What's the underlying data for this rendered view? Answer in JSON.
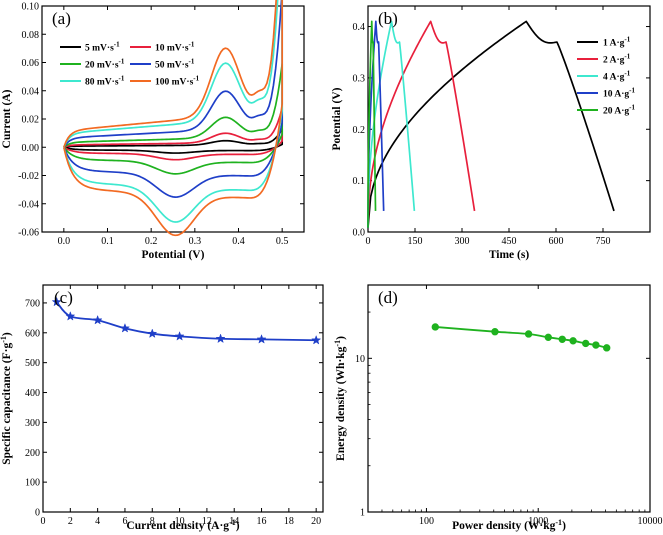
{
  "chart_data": [
    {
      "panel": "(a)",
      "type": "line",
      "xlabel": "Potential (V)",
      "ylabel": "Current (A)",
      "xlim": [
        -0.05,
        0.55
      ],
      "ylim": [
        -0.06,
        0.1
      ],
      "xticks": [
        "0.0",
        "0.1",
        "0.2",
        "0.3",
        "0.4",
        "0.5"
      ],
      "xtick_values": [
        0.0,
        0.1,
        0.2,
        0.3,
        0.4,
        0.5
      ],
      "yticks": [
        "-0.06",
        "-0.04",
        "-0.02",
        "0.00",
        "0.02",
        "0.04",
        "0.06",
        "0.08",
        "0.10"
      ],
      "ytick_values": [
        -0.06,
        -0.04,
        -0.02,
        0.0,
        0.02,
        0.04,
        0.06,
        0.08,
        0.1
      ],
      "legend_position": "top-left",
      "series": [
        {
          "name": "5 mV·s",
          "sup": "-1",
          "color": "#000000",
          "scale": 0.0035
        },
        {
          "name": "10 mV·s",
          "sup": "-1",
          "color": "#e8203c",
          "scale": 0.0075
        },
        {
          "name": "20 mV·s",
          "sup": "-1",
          "color": "#1fb21f",
          "scale": 0.016
        },
        {
          "name": "50 mV·s",
          "sup": "-1",
          "color": "#1f3fc8",
          "scale": 0.03
        },
        {
          "name": "80 mV·s",
          "sup": "-1",
          "color": "#3ee8cf",
          "scale": 0.045
        },
        {
          "name": "100 mV·s",
          "sup": "-1",
          "color": "#f26a22",
          "scale": 0.053
        }
      ]
    },
    {
      "panel": "(b)",
      "type": "line",
      "xlabel": "Time (s)",
      "ylabel": "Potential (V)",
      "xlim": [
        0,
        900
      ],
      "ylim": [
        0,
        0.44
      ],
      "xticks": [
        "0",
        "150",
        "300",
        "450",
        "600",
        "750"
      ],
      "xtick_values": [
        0,
        150,
        300,
        450,
        600,
        750
      ],
      "yticks": [
        "0.0",
        "0.1",
        "0.2",
        "0.3",
        "0.4"
      ],
      "ytick_values": [
        0.0,
        0.1,
        0.2,
        0.3,
        0.4
      ],
      "legend_position": "top-right",
      "series": [
        {
          "name": "1 A·g",
          "sup": "-1",
          "color": "#000000",
          "charge_time": 505,
          "discharge_end": 785
        },
        {
          "name": "2 A·g",
          "sup": "-1",
          "color": "#e8203c",
          "charge_time": 200,
          "discharge_end": 340
        },
        {
          "name": "4 A·g",
          "sup": "-1",
          "color": "#3ee8cf",
          "charge_time": 75,
          "discharge_end": 148
        },
        {
          "name": "10 A·g",
          "sup": "-1",
          "color": "#1f3fc8",
          "charge_time": 25,
          "discharge_end": 50
        },
        {
          "name": "20 A·g",
          "sup": "-1",
          "color": "#1fb21f",
          "charge_time": 12,
          "discharge_end": 24
        }
      ]
    },
    {
      "panel": "(c)",
      "type": "line",
      "xlabel": "Current density (A·g",
      "xlabel_sup": "-1",
      "xlabel_end": ")",
      "ylabel": "Specific capacitance (F·g",
      "ylabel_sup": "-1",
      "ylabel_end": ")",
      "xlim": [
        0,
        20.5
      ],
      "ylim": [
        0,
        760
      ],
      "xticks": [
        "0",
        "2",
        "4",
        "6",
        "8",
        "10",
        "12",
        "14",
        "16",
        "18",
        "20"
      ],
      "xtick_values": [
        0,
        2,
        4,
        6,
        8,
        10,
        12,
        14,
        16,
        18,
        20
      ],
      "yticks": [
        "0",
        "100",
        "200",
        "300",
        "400",
        "500",
        "600",
        "700"
      ],
      "ytick_values": [
        0,
        100,
        200,
        300,
        400,
        500,
        600,
        700
      ],
      "color": "#1f3fc8",
      "x": [
        1,
        2,
        4,
        6,
        8,
        10,
        13,
        16,
        20
      ],
      "y": [
        703,
        655,
        642,
        615,
        597,
        588,
        580,
        578,
        575
      ]
    },
    {
      "panel": "(d)",
      "type": "line",
      "xscale": "log",
      "yscale": "log",
      "xlabel": "Power density (W·kg",
      "xlabel_sup": "-1",
      "xlabel_end": ")",
      "ylabel": "Energy density (Wh·kg",
      "ylabel_sup": "-1",
      "ylabel_end": ")",
      "xlim": [
        30,
        10000
      ],
      "ylim": [
        1,
        30
      ],
      "xticks": [
        "100",
        "1000",
        "10000"
      ],
      "xtick_values": [
        100,
        1000,
        10000
      ],
      "yticks": [
        "1",
        "10"
      ],
      "ytick_values": [
        1,
        10
      ],
      "color": "#1fb21f",
      "x": [
        120,
        410,
        820,
        1230,
        1640,
        2050,
        2660,
        3280,
        4100
      ],
      "y": [
        16.0,
        14.9,
        14.4,
        13.7,
        13.3,
        13.0,
        12.5,
        12.2,
        11.7
      ]
    }
  ]
}
